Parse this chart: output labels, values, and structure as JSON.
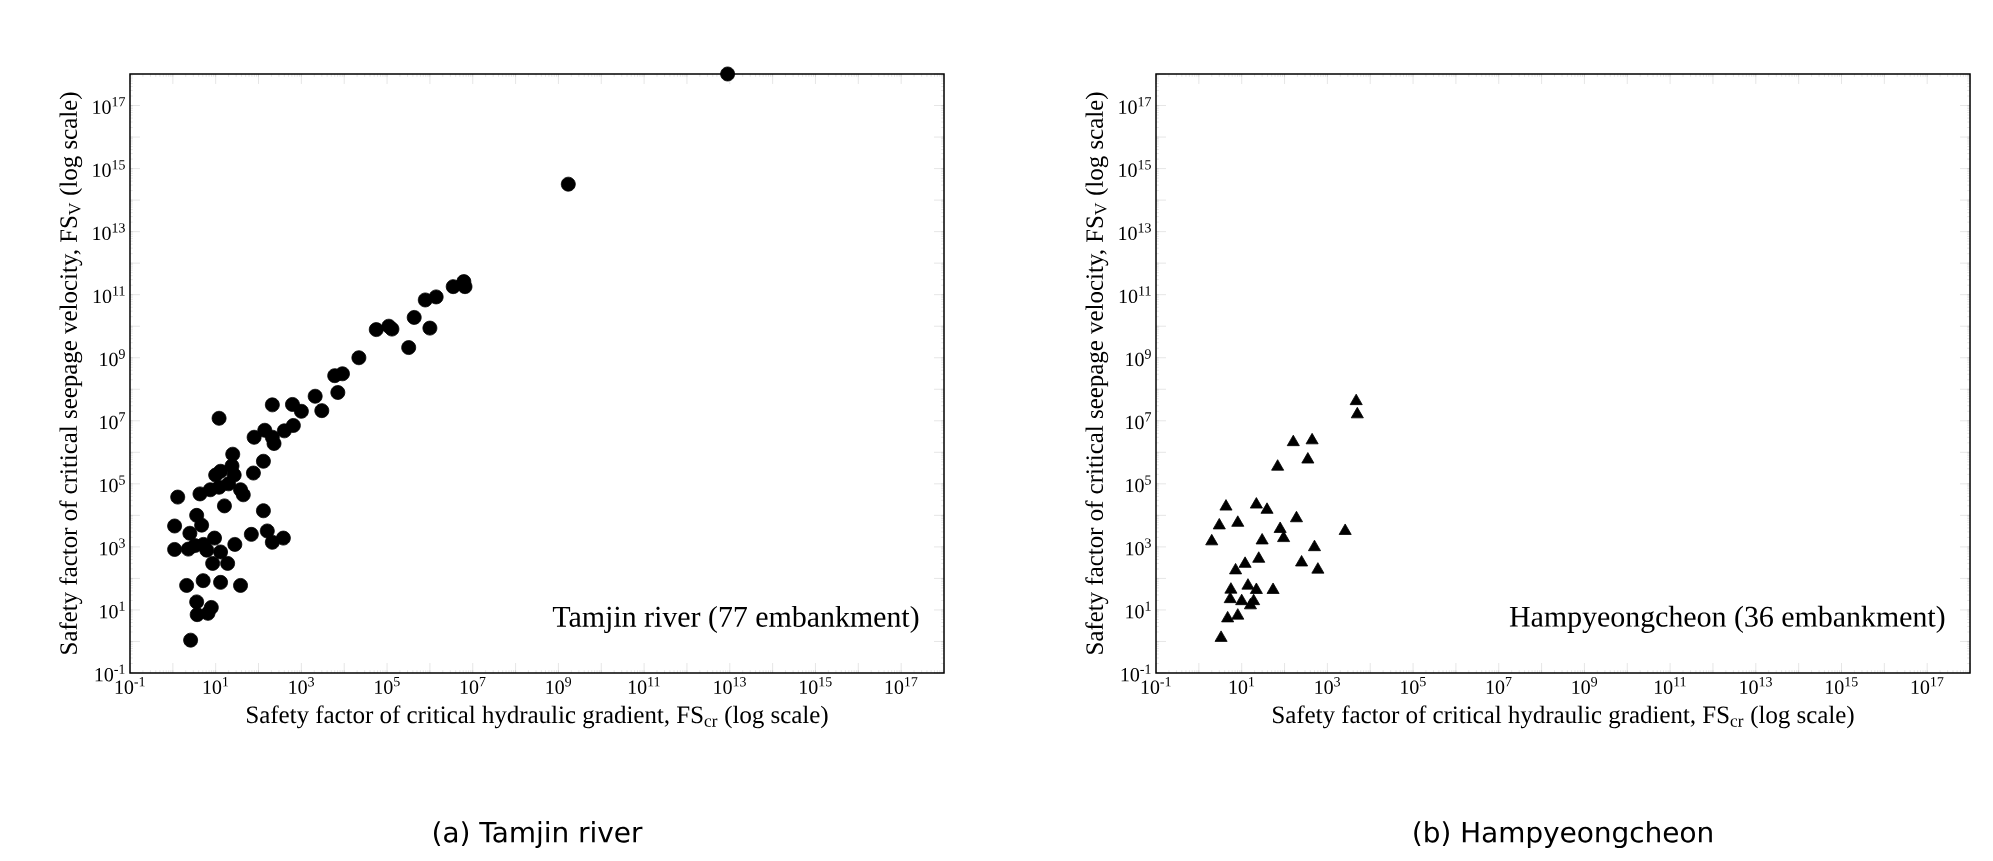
{
  "chart_data": [
    {
      "type": "scatter",
      "title": "(a) Tamjin river",
      "xlabel": "Safety factor of critical hydraulic gradient, FS$_{cr}$ (log scale)",
      "ylabel": "Safety factor of critical seepage velocity, FS$_{V}$ (log scale)",
      "log": "xy",
      "marker": "circle",
      "color": "#000000",
      "xlim": [
        0.1,
        1e+18
      ],
      "ylim": [
        0.1,
        1e+18
      ],
      "xticks": [
        {
          "value": 0.1,
          "label": "10$^{-1}$"
        },
        {
          "value": 1,
          "label": null
        },
        {
          "value": 10,
          "label": "10$^{1}$"
        },
        {
          "value": 100,
          "label": null
        },
        {
          "value": 1000.0,
          "label": "10$^{3}$"
        },
        {
          "value": 10000.0,
          "label": null
        },
        {
          "value": 100000.0,
          "label": "10$^{5}$"
        },
        {
          "value": 1000000.0,
          "label": null
        },
        {
          "value": 10000000.0,
          "label": "10$^{7}$"
        },
        {
          "value": 100000000.0,
          "label": null
        },
        {
          "value": 1000000000.0,
          "label": "10$^{9}$"
        },
        {
          "value": 10000000000.0,
          "label": null
        },
        {
          "value": 100000000000.0,
          "label": "10$^{11}$"
        },
        {
          "value": 1000000000000.0,
          "label": null
        },
        {
          "value": 10000000000000.0,
          "label": "10$^{13}$"
        },
        {
          "value": 100000000000000.0,
          "label": null
        },
        {
          "value": 1000000000000000.0,
          "label": "10$^{15}$"
        },
        {
          "value": 1e+16,
          "label": null
        },
        {
          "value": 1e+17,
          "label": "10$^{17}$"
        },
        {
          "value": 1e+18,
          "label": null
        }
      ],
      "yticks": [
        {
          "value": 0.1,
          "label": "10$^{-1}$"
        },
        {
          "value": 1,
          "label": null
        },
        {
          "value": 10,
          "label": "10$^{1}$"
        },
        {
          "value": 100,
          "label": null
        },
        {
          "value": 1000.0,
          "label": "10$^{3}$"
        },
        {
          "value": 10000.0,
          "label": null
        },
        {
          "value": 100000.0,
          "label": "10$^{5}$"
        },
        {
          "value": 1000000.0,
          "label": null
        },
        {
          "value": 10000000.0,
          "label": "10$^{7}$"
        },
        {
          "value": 100000000.0,
          "label": null
        },
        {
          "value": 1000000000.0,
          "label": "10$^{9}$"
        },
        {
          "value": 10000000000.0,
          "label": null
        },
        {
          "value": 100000000000.0,
          "label": "10$^{11}$"
        },
        {
          "value": 1000000000000.0,
          "label": null
        },
        {
          "value": 10000000000000.0,
          "label": "10$^{13}$"
        },
        {
          "value": 100000000000000.0,
          "label": null
        },
        {
          "value": 1000000000000000.0,
          "label": "10$^{15}$"
        },
        {
          "value": 1e+16,
          "label": null
        },
        {
          "value": 1e+17,
          "label": "10$^{17}$"
        },
        {
          "value": 1e+18,
          "label": null
        }
      ],
      "x": [
        1.3,
        1.1,
        1.1,
        4.3,
        3.6,
        4.7,
        2.5,
        2.3,
        3.3,
        5.2,
        6.2,
        9.4,
        13,
        8.5,
        19,
        28,
        2.1,
        5.1,
        13,
        38,
        3.6,
        3.7,
        6.6,
        7.9,
        2.6,
        12,
        7.5,
        12,
        10,
        13,
        16,
        20,
        25,
        24,
        27,
        38,
        44,
        68,
        76,
        79,
        130,
        130,
        160,
        210,
        380,
        140,
        210,
        230,
        210,
        400,
        650,
        620,
        1000.0,
        2100.0,
        3000.0,
        7100.0,
        6000.0,
        9100.0,
        22000.0,
        56000.0,
        130000.0,
        320000.0,
        1000000.0,
        1700000000.0,
        6200000.0,
        6600000.0,
        3500000.0,
        1400000.0,
        780000.0,
        430000.0,
        110000.0,
        8900000000000.0
      ],
      "values": [
        38000.0,
        4600.0,
        830,
        48000.0,
        10000.0,
        4900.0,
        2700.0,
        850,
        1100.0,
        1200.0,
        790,
        1900.0,
        690,
        300,
        300,
        1200.0,
        60,
        85,
        75,
        60,
        18,
        7.1,
        7.8,
        12,
        1.1,
        12000000.0,
        65000.0,
        78000.0,
        190000.0,
        250000.0,
        20000.0,
        100000.0,
        870000.0,
        370000.0,
        190000.0,
        65000.0,
        45000.0,
        2500.0,
        220000.0,
        3000000.0,
        520000.0,
        14000.0,
        3200.0,
        1400.0,
        1900.0,
        5000000.0,
        3000000.0,
        1900000.0,
        32000000.0,
        4800000.0,
        7100000.0,
        33000000.0,
        20000000.0,
        60000000.0,
        21000000.0,
        79000000.0,
        270000000.0,
        310000000.0,
        1000000000.0,
        7800000000.0,
        8100000000.0,
        2100000000.0,
        8700000000.0,
        320000000000000.0,
        260000000000.0,
        180000000000.0,
        180000000000.0,
        85000000000.0,
        68000000000.0,
        19000000000.0,
        10000000000.0,
        1e+18
      ],
      "annotations": [
        "Tamjin river (77 embankment)"
      ]
    },
    {
      "type": "scatter",
      "title": "(b) Hampyeongcheon",
      "xlabel": "Safety factor of critical hydraulic gradient, FS$_{cr}$ (log scale)",
      "ylabel": "Safety factor of critical seepage velocity, FS$_{V}$ (log scale)",
      "log": "xy",
      "marker": "triangle",
      "color": "#000000",
      "xlim": [
        0.1,
        1e+18
      ],
      "ylim": [
        0.1,
        1e+18
      ],
      "xticks": [
        {
          "value": 0.1,
          "label": "10$^{-1}$"
        },
        {
          "value": 1,
          "label": null
        },
        {
          "value": 10,
          "label": "10$^{1}$"
        },
        {
          "value": 100,
          "label": null
        },
        {
          "value": 1000.0,
          "label": "10$^{3}$"
        },
        {
          "value": 10000.0,
          "label": null
        },
        {
          "value": 100000.0,
          "label": "10$^{5}$"
        },
        {
          "value": 1000000.0,
          "label": null
        },
        {
          "value": 10000000.0,
          "label": "10$^{7}$"
        },
        {
          "value": 100000000.0,
          "label": null
        },
        {
          "value": 1000000000.0,
          "label": "10$^{9}$"
        },
        {
          "value": 10000000000.0,
          "label": null
        },
        {
          "value": 100000000000.0,
          "label": "10$^{11}$"
        },
        {
          "value": 1000000000000.0,
          "label": null
        },
        {
          "value": 10000000000000.0,
          "label": "10$^{13}$"
        },
        {
          "value": 100000000000000.0,
          "label": null
        },
        {
          "value": 1000000000000000.0,
          "label": "10$^{15}$"
        },
        {
          "value": 1e+16,
          "label": null
        },
        {
          "value": 1e+17,
          "label": "10$^{17}$"
        },
        {
          "value": 1e+18,
          "label": null
        }
      ],
      "yticks": [
        {
          "value": 0.1,
          "label": "10$^{-1}$"
        },
        {
          "value": 1,
          "label": null
        },
        {
          "value": 10,
          "label": "10$^{1}$"
        },
        {
          "value": 100,
          "label": null
        },
        {
          "value": 1000.0,
          "label": "10$^{3}$"
        },
        {
          "value": 10000.0,
          "label": null
        },
        {
          "value": 100000.0,
          "label": "10$^{5}$"
        },
        {
          "value": 1000000.0,
          "label": null
        },
        {
          "value": 10000000.0,
          "label": "10$^{7}$"
        },
        {
          "value": 100000000.0,
          "label": null
        },
        {
          "value": 1000000000.0,
          "label": "10$^{9}$"
        },
        {
          "value": 10000000000.0,
          "label": null
        },
        {
          "value": 100000000000.0,
          "label": "10$^{11}$"
        },
        {
          "value": 1000000000000.0,
          "label": null
        },
        {
          "value": 10000000000000.0,
          "label": "10$^{13}$"
        },
        {
          "value": 100000000000000.0,
          "label": null
        },
        {
          "value": 1000000000000000.0,
          "label": "10$^{15}$"
        },
        {
          "value": 1e+16,
          "label": null
        },
        {
          "value": 1e+17,
          "label": "10$^{17}$"
        },
        {
          "value": 1e+18,
          "label": null
        }
      ],
      "x": [
        4700.0,
        5000.0,
        160,
        440,
        350,
        69,
        4.3,
        22,
        39,
        3.0,
        8.1,
        2.0,
        190,
        79,
        95,
        30,
        2600.0,
        500,
        250,
        600,
        25,
        12,
        7.2,
        5.6,
        14,
        22,
        54,
        5.4,
        10,
        19,
        16,
        4.7,
        8.1,
        3.3
      ],
      "values": [
        42000000.0,
        16000000.0,
        2100000.0,
        2400000.0,
        590000.0,
        350000.0,
        19000.0,
        22000.0,
        15000.0,
        4800.0,
        5800.0,
        1500.0,
        8100.0,
        3700.0,
        1900.0,
        1600.0,
        3200.0,
        980,
        320,
        190,
        420,
        290,
        180,
        44,
        59,
        43,
        43,
        22,
        19,
        19,
        14,
        5.4,
        6.6,
        1.3
      ],
      "annotations": [
        "Hampyeongcheon (36 embankment)"
      ]
    }
  ]
}
